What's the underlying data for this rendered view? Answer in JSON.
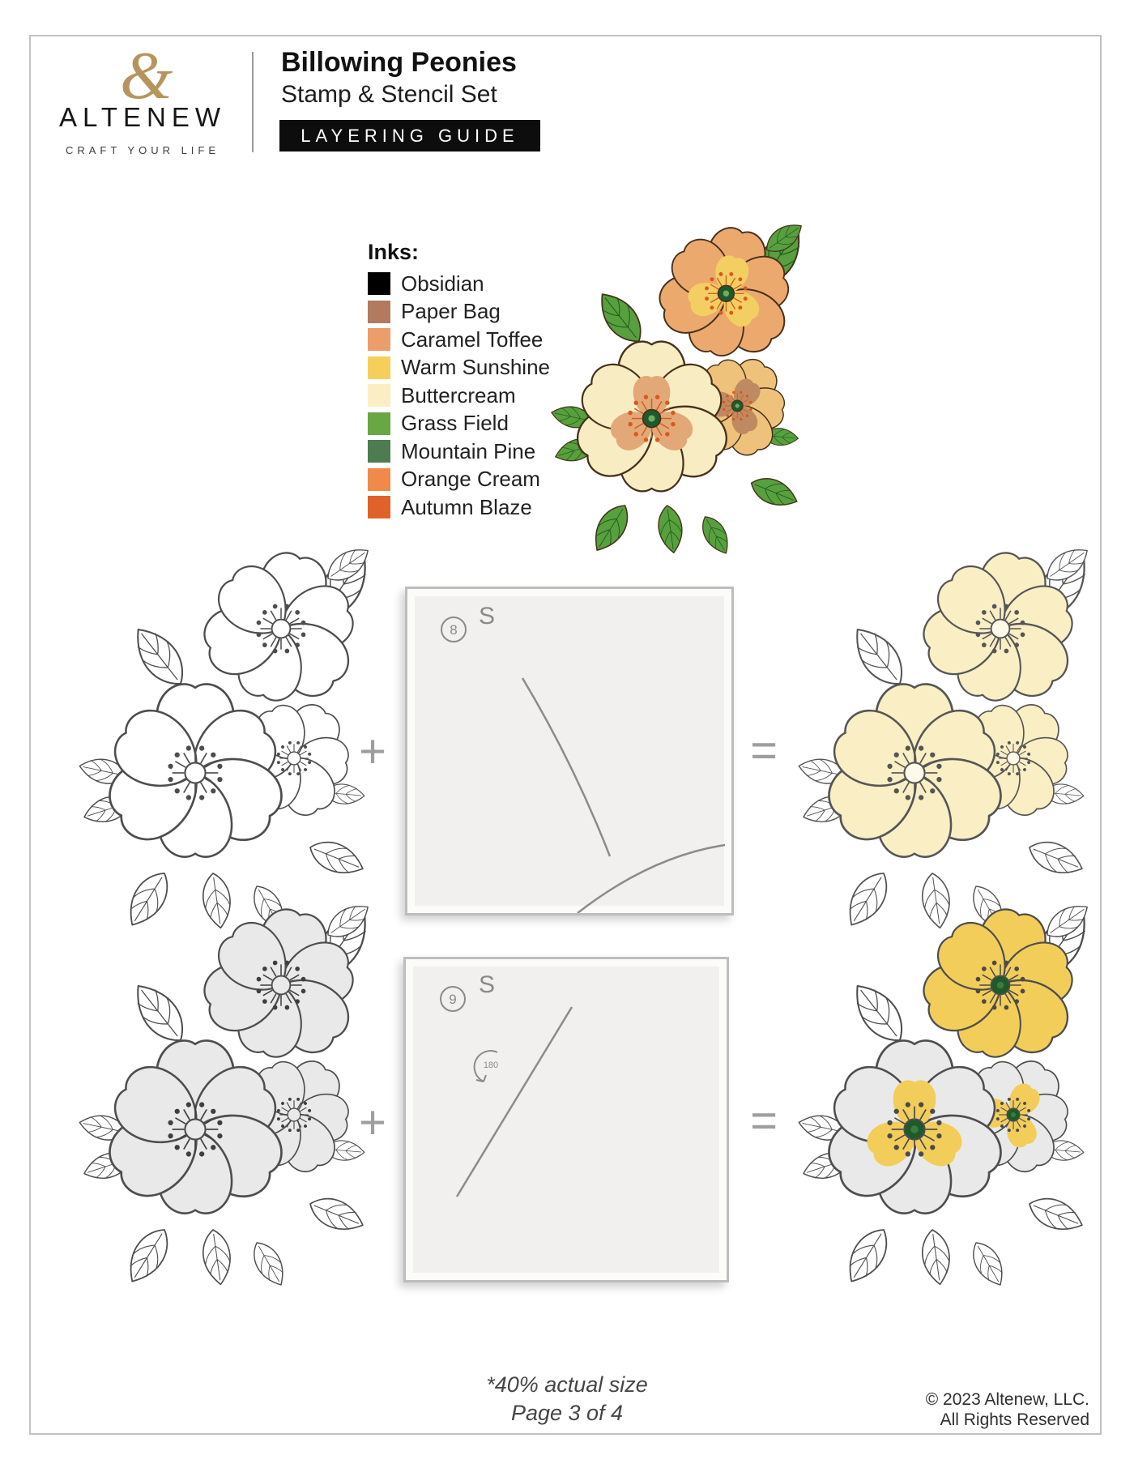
{
  "header": {
    "brand_left": "ALT",
    "brand_mid": "E",
    "brand_right": "NEW",
    "ampersand": "&",
    "tagline": "CRAFT YOUR LIFE",
    "title": "Billowing Peonies",
    "subtitle": "Stamp & Stencil Set",
    "banner": "LAYERING GUIDE"
  },
  "inks": {
    "heading": "Inks:",
    "items": [
      {
        "name": "Obsidian",
        "hex": "#000000"
      },
      {
        "name": "Paper Bag",
        "hex": "#b27a5f"
      },
      {
        "name": "Caramel Toffee",
        "hex": "#eb9e6a"
      },
      {
        "name": "Warm Sunshine",
        "hex": "#f4d05a"
      },
      {
        "name": "Buttercream",
        "hex": "#faeec2"
      },
      {
        "name": "Grass Field",
        "hex": "#69a744"
      },
      {
        "name": "Mountain Pine",
        "hex": "#4c7c50"
      },
      {
        "name": "Orange Cream",
        "hex": "#f08a4a"
      },
      {
        "name": "Autumn Blaze",
        "hex": "#e0622a"
      }
    ]
  },
  "steps": [
    {
      "stencil_number": "8",
      "stencil_letter": "S"
    },
    {
      "stencil_number": "9",
      "stencil_letter": "S",
      "rotation": "180"
    }
  ],
  "operators": {
    "plus": "+",
    "equals": "="
  },
  "footer": {
    "scale_note": "*40% actual size",
    "page": "Page 3 of 4",
    "copyright_line1": "© 2023 Altenew, LLC.",
    "copyright_line2": "All Rights Reserved"
  }
}
